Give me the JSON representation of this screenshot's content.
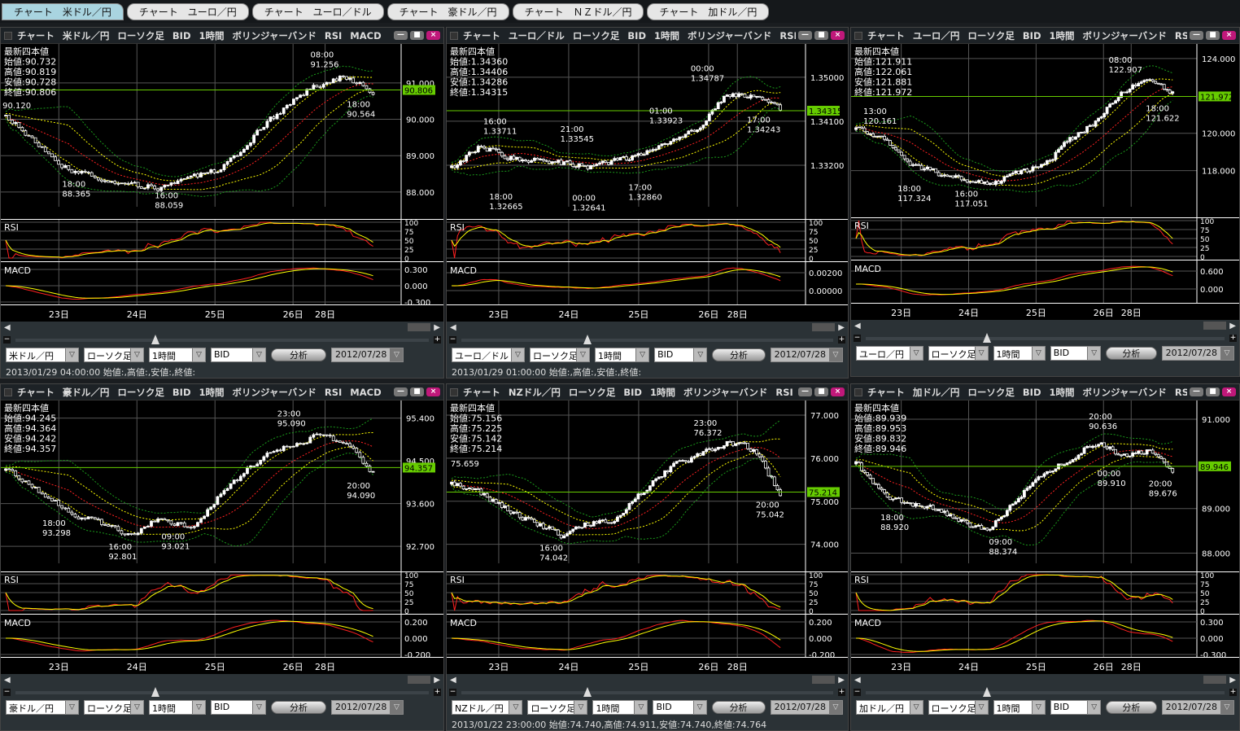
{
  "tabs": [
    "チャート　米ドル／円",
    "チャート　ユーロ／円",
    "チャート　ユーロ／ドル",
    "チャート　豪ドル／円",
    "チャート　ＮＺドル／円",
    "チャート　加ドル／円"
  ],
  "colors": {
    "candle": "#ffffff",
    "bb_mid": "#ff2020",
    "bb_1sigma": "#ffff00",
    "bb_2sigma": "#1a9a1a",
    "rsi": "#ff2020",
    "rsi_signal": "#ffff00",
    "macd": "#ff2020",
    "macd_signal": "#ffff00",
    "current_price": "#66cc00"
  },
  "labels": {
    "ohlc_title": "最新四本値",
    "open": "始値:",
    "high": "高値:",
    "low": "安値:",
    "close": "終値:",
    "rsi": "RSI",
    "macd": "MACD",
    "analyze": "分析",
    "window_minimize": "—",
    "window_maximize": "■",
    "window_close": "×"
  },
  "icons": {
    "scroll_left": "triangle-left",
    "scroll_right": "triangle-right",
    "zoom_out": "minus",
    "zoom_in": "plus",
    "dropdown": "triangle-down"
  },
  "panels": [
    {
      "header": "チャート 米ドル／円 ローソク足 BID 1時間 ボリンジャーバンド RSI MACD",
      "ohlc": [
        "90.732",
        "90.819",
        "90.728",
        "90.806"
      ],
      "current": "90.806",
      "ylim": [
        87.26,
        92.07
      ],
      "yticks": [
        "91.000",
        "90.000",
        "89.000",
        "88.000"
      ],
      "rsi_ticks": [
        "100",
        "75",
        "50",
        "25",
        "0"
      ],
      "macd_ticks": [
        "0.300",
        "0.000",
        "-0.300"
      ],
      "dates": [
        "23日",
        "24日",
        "25日",
        "26日",
        "28日"
      ],
      "path": [
        90.1,
        89.3,
        88.6,
        88.4,
        88.2,
        88.1,
        88.4,
        88.6,
        89.5,
        90.3,
        90.9,
        91.2,
        90.7
      ],
      "annotations": [
        {
          "t": "",
          "p": "90.120",
          "i": 2,
          "pos": "above"
        },
        {
          "t": "18:00",
          "p": "88.365",
          "i": 20,
          "pos": "below"
        },
        {
          "t": "16:00",
          "p": "88.059",
          "i": 48,
          "pos": "below"
        },
        {
          "t": "08:00",
          "p": "91.256",
          "i": 95,
          "pos": "above"
        },
        {
          "t": "18:00",
          "p": "90.564",
          "i": 106,
          "pos": "below"
        }
      ],
      "controls": {
        "pair": "米ドル／円",
        "type": "ローソク足",
        "period": "1時間",
        "side": "BID",
        "date": "2012/07/28"
      },
      "status": "2013/01/29 04:00:00 始値:,高値:,安値:,終値:"
    },
    {
      "header": "チャート ユーロ／ドル ローソク足 BID 1時間 ボリンジャーバンド RSI M･･･",
      "ohlc": [
        "1.34360",
        "1.34406",
        "1.34286",
        "1.34315"
      ],
      "current": "1.34315",
      "ylim": [
        1.321,
        1.3568
      ],
      "yticks": [
        "1.35000",
        "1.34100",
        "1.33200"
      ],
      "rsi_ticks": [
        "100",
        "75",
        "50",
        "25",
        "0"
      ],
      "macd_ticks": [
        "0.00200",
        "0.00000"
      ],
      "dates": [
        "23日",
        "24日",
        "25日",
        "26日",
        "28日"
      ],
      "path": [
        1.3315,
        1.336,
        1.3335,
        1.333,
        1.3325,
        1.3315,
        1.333,
        1.3345,
        1.337,
        1.3395,
        1.3465,
        1.346,
        1.3432
      ],
      "annotations": [
        {
          "t": "16:00",
          "p": "1.33711",
          "i": 14,
          "pos": "above"
        },
        {
          "t": "18:00",
          "p": "1.32665",
          "i": 16,
          "pos": "below"
        },
        {
          "t": "21:00",
          "p": "1.33545",
          "i": 40,
          "pos": "above"
        },
        {
          "t": "00:00",
          "p": "1.32641",
          "i": 44,
          "pos": "below"
        },
        {
          "t": "17:00",
          "p": "1.32860",
          "i": 63,
          "pos": "below"
        },
        {
          "t": "01:00",
          "p": "1.33923",
          "i": 70,
          "pos": "above"
        },
        {
          "t": "00:00",
          "p": "1.34787",
          "i": 84,
          "pos": "above"
        },
        {
          "t": "17:00",
          "p": "1.34243",
          "i": 103,
          "pos": "below"
        }
      ],
      "controls": {
        "pair": "ユーロ／ドル",
        "type": "ローソク足",
        "period": "1時間",
        "side": "BID",
        "date": "2012/07/28"
      },
      "status": "2013/01/29 01:00:00 始値:,高値:,安値:,終値:"
    },
    {
      "header": "チャート ユーロ／円 ローソク足 BID 1時間 ボリンジャーバンド RSI ･･･",
      "ohlc": [
        "121.911",
        "122.061",
        "121.881",
        "121.972"
      ],
      "current": "121.972",
      "ylim": [
        115.5,
        124.78
      ],
      "yticks": [
        "124.000",
        "120.000",
        "118.000"
      ],
      "rsi_ticks": [
        "100",
        "75",
        "50",
        "25",
        "0"
      ],
      "macd_ticks": [
        "0.600",
        "0.000"
      ],
      "dates": [
        "23日",
        "24日",
        "25日",
        "26日",
        "28日"
      ],
      "path": [
        120.2,
        119.6,
        118.4,
        117.9,
        117.6,
        117.2,
        117.9,
        118.2,
        119.6,
        120.6,
        122.2,
        122.8,
        122.1
      ],
      "annotations": [
        {
          "t": "13:00",
          "p": "120.161",
          "i": 6,
          "pos": "above"
        },
        {
          "t": "18:00",
          "p": "117.324",
          "i": 18,
          "pos": "below"
        },
        {
          "t": "16:00",
          "p": "117.051",
          "i": 38,
          "pos": "below"
        },
        {
          "t": "08:00",
          "p": "122.907",
          "i": 92,
          "pos": "above"
        },
        {
          "t": "18:00",
          "p": "121.622",
          "i": 105,
          "pos": "below"
        }
      ],
      "controls": {
        "pair": "ユーロ／円",
        "type": "ローソク足",
        "period": "1時間",
        "side": "BID",
        "date": "2012/07/28"
      },
      "status": ""
    },
    {
      "header": "チャート 豪ドル／円 ローソク足 BID 1時間 ボリンジャーバンド RSI MACD",
      "ohlc": [
        "94.245",
        "94.364",
        "94.242",
        "94.357"
      ],
      "current": "94.357",
      "ylim": [
        92.17,
        95.77
      ],
      "yticks": [
        "95.400",
        "94.500",
        "93.600",
        "92.700"
      ],
      "rsi_ticks": [
        "100",
        "75",
        "50",
        "25",
        "0"
      ],
      "macd_ticks": [
        "0.200",
        "0.000",
        "-0.200"
      ],
      "dates": [
        "23日",
        "24日",
        "25日",
        "26日",
        "28日"
      ],
      "path": [
        94.3,
        93.9,
        93.4,
        93.2,
        92.9,
        93.3,
        93.1,
        93.8,
        94.4,
        94.8,
        95.0,
        94.9,
        94.2
      ],
      "annotations": [
        {
          "t": "18:00",
          "p": "93.298",
          "i": 14,
          "pos": "below"
        },
        {
          "t": "16:00",
          "p": "92.801",
          "i": 34,
          "pos": "below"
        },
        {
          "t": "09:00",
          "p": "93.021",
          "i": 50,
          "pos": "below"
        },
        {
          "t": "23:00",
          "p": "95.090",
          "i": 85,
          "pos": "above"
        },
        {
          "t": "20:00",
          "p": "94.090",
          "i": 106,
          "pos": "below"
        }
      ],
      "controls": {
        "pair": "豪ドル／円",
        "type": "ローソク足",
        "period": "1時間",
        "side": "BID",
        "date": "2012/07/28"
      },
      "status": ""
    },
    {
      "header": "チャート NZドル／円 ローソク足 BID 1時間 ボリンジャーバンド RSI M･･･",
      "ohlc": [
        "75.156",
        "75.225",
        "75.142",
        "75.214"
      ],
      "current": "75.214",
      "ylim": [
        73.37,
        77.34
      ],
      "yticks": [
        "77.000",
        "76.000",
        "75.000",
        "74.000"
      ],
      "rsi_ticks": [
        "100",
        "75",
        "50",
        "25",
        "0"
      ],
      "macd_ticks": [
        "0.200",
        "0.000",
        "-0.200"
      ],
      "dates": [
        "23日",
        "24日",
        "25日",
        "26日",
        "28日"
      ],
      "path": [
        75.4,
        75.2,
        74.8,
        74.5,
        74.2,
        74.5,
        74.6,
        75.3,
        75.8,
        76.1,
        76.35,
        76.2,
        75.1
      ],
      "annotations": [
        {
          "t": "",
          "p": "75.659",
          "i": 3,
          "pos": "above"
        },
        {
          "t": "16:00",
          "p": "74.042",
          "i": 33,
          "pos": "below"
        },
        {
          "t": "23:00",
          "p": "76.372",
          "i": 85,
          "pos": "above"
        },
        {
          "t": "20:00",
          "p": "75.042",
          "i": 106,
          "pos": "below"
        }
      ],
      "controls": {
        "pair": "NZドル／円",
        "type": "ローソク足",
        "period": "1時間",
        "side": "BID",
        "date": "2012/07/28"
      },
      "status": "2013/01/22 23:00:00 始値:74.740,高値:74.911,安値:74.740,終値:74.764"
    },
    {
      "header": "チャート 加ドル／円 ローソク足 BID 1時間 ボリンジャーバンド RSI ･･･",
      "ohlc": [
        "89.939",
        "89.953",
        "89.832",
        "89.946"
      ],
      "current": "89.946",
      "ylim": [
        87.59,
        91.42
      ],
      "yticks": [
        "91.000",
        "89.000",
        "88.000"
      ],
      "rsi_ticks": [
        "100",
        "75",
        "50",
        "25",
        "0"
      ],
      "macd_ticks": [
        "0.300",
        "0.000",
        "-0.300"
      ],
      "dates": [
        "23日",
        "24日",
        "25日",
        "26日",
        "28日"
      ],
      "path": [
        90.0,
        89.3,
        89.1,
        89.0,
        88.7,
        88.5,
        89.2,
        89.8,
        90.1,
        90.5,
        90.2,
        90.3,
        89.8
      ],
      "annotations": [
        {
          "t": "18:00",
          "p": "88.920",
          "i": 12,
          "pos": "below"
        },
        {
          "t": "09:00",
          "p": "88.374",
          "i": 50,
          "pos": "below"
        },
        {
          "t": "20:00",
          "p": "90.636",
          "i": 85,
          "pos": "above"
        },
        {
          "t": "00:00",
          "p": "89.910",
          "i": 88,
          "pos": "below"
        },
        {
          "t": "20:00",
          "p": "89.676",
          "i": 106,
          "pos": "below"
        }
      ],
      "controls": {
        "pair": "加ドル／円",
        "type": "ローソク足",
        "period": "1時間",
        "side": "BID",
        "date": "2012/07/28"
      },
      "status": ""
    }
  ]
}
